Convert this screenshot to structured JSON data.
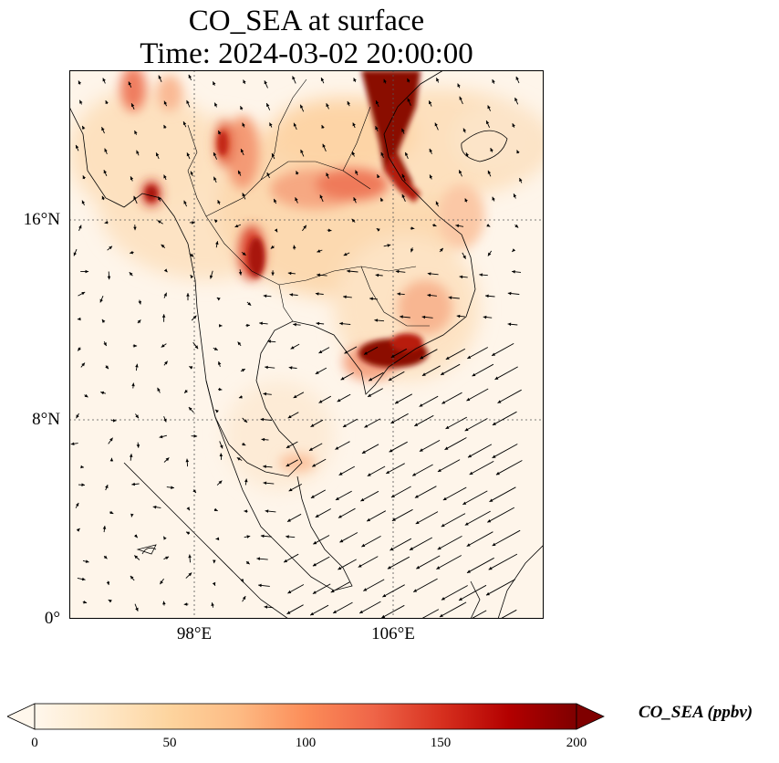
{
  "title": {
    "line1": "CO_SEA at surface",
    "line2": "Time: 2024-03-02 20:00:00"
  },
  "map": {
    "lat_labels": [
      "16°N",
      "8°N",
      "0°"
    ],
    "lon_labels": [
      "98°E",
      "106°E"
    ],
    "gridline_style": "dotted"
  },
  "colorbar": {
    "label": "CO_SEA (ppbv)",
    "min": 0,
    "max": 200,
    "ticks": [
      "0",
      "50",
      "100",
      "150",
      "200"
    ],
    "colormap": "OrRd",
    "extend": "both",
    "colors": [
      "#fff7ec",
      "#fee8c8",
      "#fdd49e",
      "#fdbb84",
      "#fc8d59",
      "#ef6548",
      "#d7301f",
      "#b30000",
      "#7f0000"
    ]
  }
}
